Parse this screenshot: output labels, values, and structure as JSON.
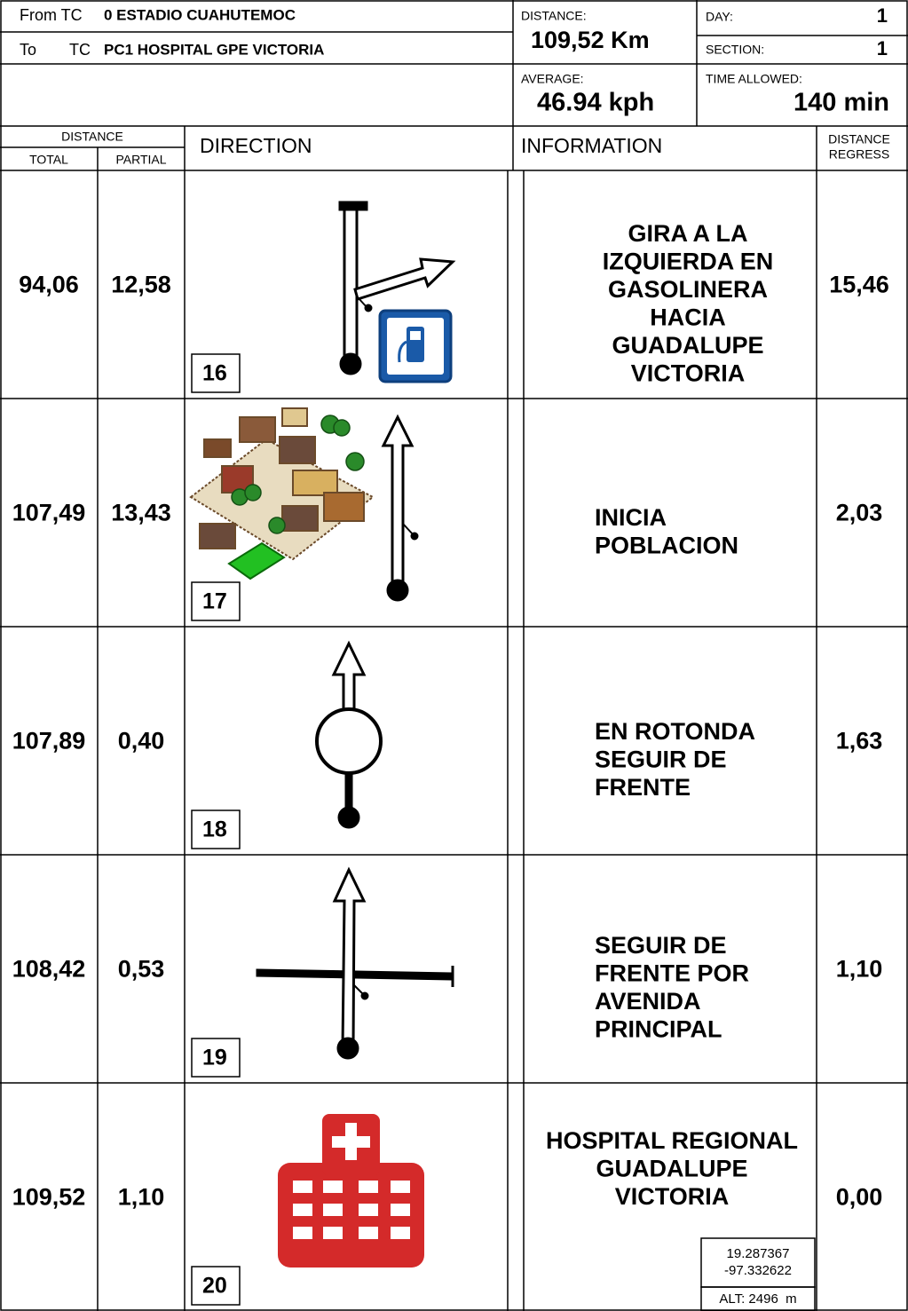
{
  "header": {
    "from_label": "From TC",
    "from_value": "0 ESTADIO CUAHUTEMOC",
    "to_label": "To",
    "to_tc": "TC",
    "to_value": "PC1 HOSPITAL GPE VICTORIA",
    "distance_label": "DISTANCE:",
    "distance_value": "109,52 Km",
    "day_label": "DAY:",
    "day_value": "1",
    "section_label": "SECTION:",
    "section_value": "1",
    "average_label": "AVERAGE:",
    "average_value": "46.94 kph",
    "time_label": "TIME ALLOWED:",
    "time_value": "140 min"
  },
  "columns": {
    "distance": "DISTANCE",
    "total": "TOTAL",
    "partial": "PARTIAL",
    "direction": "DIRECTION",
    "information": "INFORMATION",
    "regress": [
      "DISTANCE",
      "REGRESS"
    ]
  },
  "rows": [
    {
      "total": "94,06",
      "partial": "12,58",
      "number": "16",
      "info": [
        "GIRA A LA",
        "IZQUIERDA EN",
        "GASOLINERA",
        "HACIA",
        "GUADALUPE",
        "VICTORIA"
      ],
      "regress": "15,46"
    },
    {
      "total": "107,49",
      "partial": "13,43",
      "number": "17",
      "info": [
        "INICIA",
        "POBLACION"
      ],
      "regress": "2,03"
    },
    {
      "total": "107,89",
      "partial": "0,40",
      "number": "18",
      "info": [
        "EN ROTONDA",
        "SEGUIR DE",
        "FRENTE"
      ],
      "regress": "1,63"
    },
    {
      "total": "108,42",
      "partial": "0,53",
      "number": "19",
      "info": [
        "SEGUIR DE",
        "FRENTE POR",
        "AVENIDA",
        "PRINCIPAL"
      ],
      "regress": "1,10"
    },
    {
      "total": "109,52",
      "partial": "1,10",
      "number": "20",
      "info": [
        "HOSPITAL REGIONAL",
        "GUADALUPE",
        "VICTORIA"
      ],
      "regress": "0,00",
      "coords": [
        "19.287367",
        "-97.332622"
      ],
      "altitude": "ALT: 2496  m"
    }
  ]
}
